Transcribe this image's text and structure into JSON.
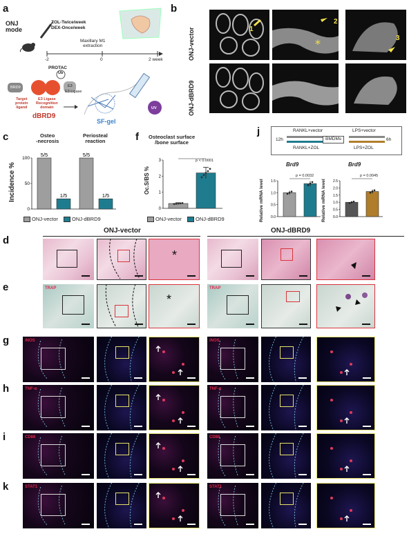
{
  "panels": {
    "a": "a",
    "b": "b",
    "c": "c",
    "f": "f",
    "j": "j",
    "d": "d",
    "e": "e",
    "g": "g",
    "h": "h",
    "i": "i",
    "k": "k"
  },
  "a": {
    "title": "ONJ\nmode",
    "zol": "ZOL-Twice/week",
    "dex": "DEX-Once/week",
    "extraction": "Maxillary M1\nextraction",
    "t0": "-2",
    "t1": "0",
    "t2": "2 week",
    "protac": "PROTAC",
    "ub": "Ub",
    "brd9": "BRD9",
    "e3": "E3",
    "e3lig": "E3 Ligase",
    "target": "Target\nprotein\nligand",
    "recog": "E3 Ligase\nRecognition\ndomain",
    "dbrd9": "dBRD9",
    "sfgel": "SF-gel",
    "uv": "UV"
  },
  "b": {
    "row1": "ONJ-vector",
    "row2": "ONJ-dBRD9",
    "arrows": [
      "1",
      "2",
      "3"
    ]
  },
  "c": {
    "ylabel": "Incidence %",
    "group1": "Osteo\n-necrosis",
    "group2": "Periosteal\nreaction"
  },
  "f": {
    "title": "Osteoclast surface\n/bone surface",
    "ylabel": "Oc.S/BS %",
    "pval": "p < 0.0001"
  },
  "legend": {
    "vector": "ONJ-vector",
    "dbrd9": "ONJ-dBRD9"
  },
  "j": {
    "rankl_vec": "RANKL+vector",
    "lps_vec": "LPS+vector",
    "rankl_zol": "RANKL+ZOL",
    "lps_zol": "LPS+ZOL",
    "bmdms": "BMDMs",
    "t12": "12h",
    "t6": "6h",
    "gene1": "Brd9",
    "gene2": "Brd9",
    "ylabel": "Relative mRNA level",
    "p1": "p = 0.0032",
    "p2": "p = 0.0045"
  },
  "histo": {
    "onj_vector": "ONJ-vector",
    "onj_dbrd9": "ONJ-dBRD9",
    "trap": "TRAP",
    "inos": "iNOS",
    "tnfa": "TNF-α",
    "cd86": "CD86",
    "stat1": "STAT1",
    "star": "*"
  },
  "colors": {
    "vector": "#9e9e9e",
    "dbrd9": "#1f7c8f",
    "zol": "#b07d2a",
    "red": "#d9333a",
    "yellow": "#e8e26a"
  },
  "chart_data": [
    {
      "type": "bar",
      "panel": "c",
      "categories": [
        "Osteo-necrosis",
        "Periosteal reaction"
      ],
      "series": [
        {
          "name": "ONJ-vector",
          "values": [
            100,
            100
          ],
          "labels": [
            "5/5",
            "5/5"
          ]
        },
        {
          "name": "ONJ-dBRD9",
          "values": [
            20,
            20
          ],
          "labels": [
            "1/5",
            "1/5"
          ]
        }
      ],
      "ylabel": "Incidence %",
      "ylim": [
        0,
        100
      ],
      "yticks": [
        0,
        50,
        100
      ]
    },
    {
      "type": "bar",
      "panel": "f",
      "categories": [
        "ONJ-vector",
        "ONJ-dBRD9"
      ],
      "values": [
        0.3,
        2.2
      ],
      "title": "Osteoclast surface /bone surface",
      "ylabel": "Oc.S/BS %",
      "ylim": [
        0,
        3
      ],
      "yticks": [
        0,
        1,
        2,
        3
      ],
      "annotation": "p < 0.0001"
    },
    {
      "type": "bar",
      "panel": "j-left",
      "title": "Brd9",
      "categories": [
        "RANKL+vector",
        "RANKL+ZOL"
      ],
      "values": [
        1.0,
        1.38
      ],
      "ylabel": "Relative mRNA level",
      "ylim": [
        0,
        1.5
      ],
      "yticks": [
        0,
        0.5,
        1.0,
        1.5
      ],
      "annotation": "p = 0.0032"
    },
    {
      "type": "bar",
      "panel": "j-right",
      "title": "Brd9",
      "categories": [
        "LPS+vector",
        "LPS+ZOL"
      ],
      "values": [
        1.0,
        1.75
      ],
      "ylabel": "Relative mRNA level",
      "ylim": [
        0,
        2.5
      ],
      "yticks": [
        0,
        0.5,
        1.0,
        1.5,
        2.0,
        2.5
      ],
      "annotation": "p = 0.0045"
    }
  ]
}
